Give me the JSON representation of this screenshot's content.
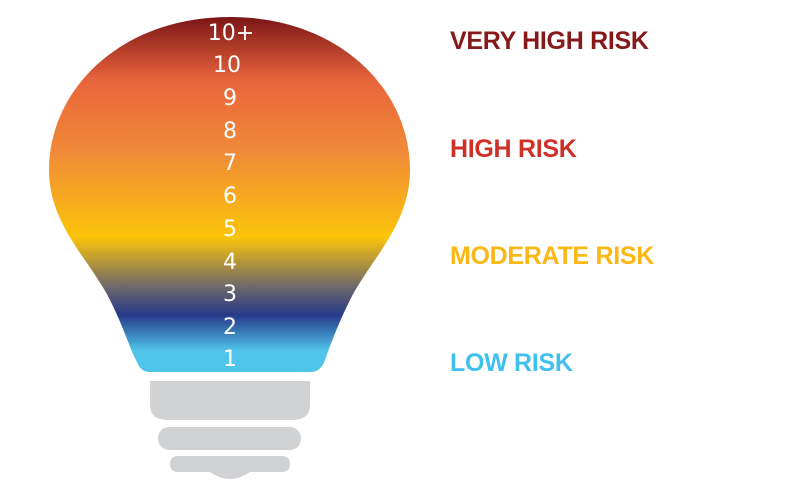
{
  "scale_numbers": [
    "10+",
    "10",
    "9",
    "8",
    "7",
    "6",
    "5",
    "4",
    "3",
    "2",
    "1"
  ],
  "risk_labels": [
    {
      "text": "VERY HIGH RISK",
      "color": "#86191a"
    },
    {
      "text": "HIGH RISK",
      "color": "#cf3128"
    },
    {
      "text": "MODERATE RISK",
      "color": "#fbb713"
    },
    {
      "text": "LOW RISK",
      "color": "#3fc0ee"
    }
  ],
  "colors": {
    "gradient": [
      "#7c1517",
      "#e9653b",
      "#f08a38",
      "#fbc50a",
      "#6d686a",
      "#263a8a",
      "#50c4ea"
    ],
    "base": "#d1d2d4"
  }
}
